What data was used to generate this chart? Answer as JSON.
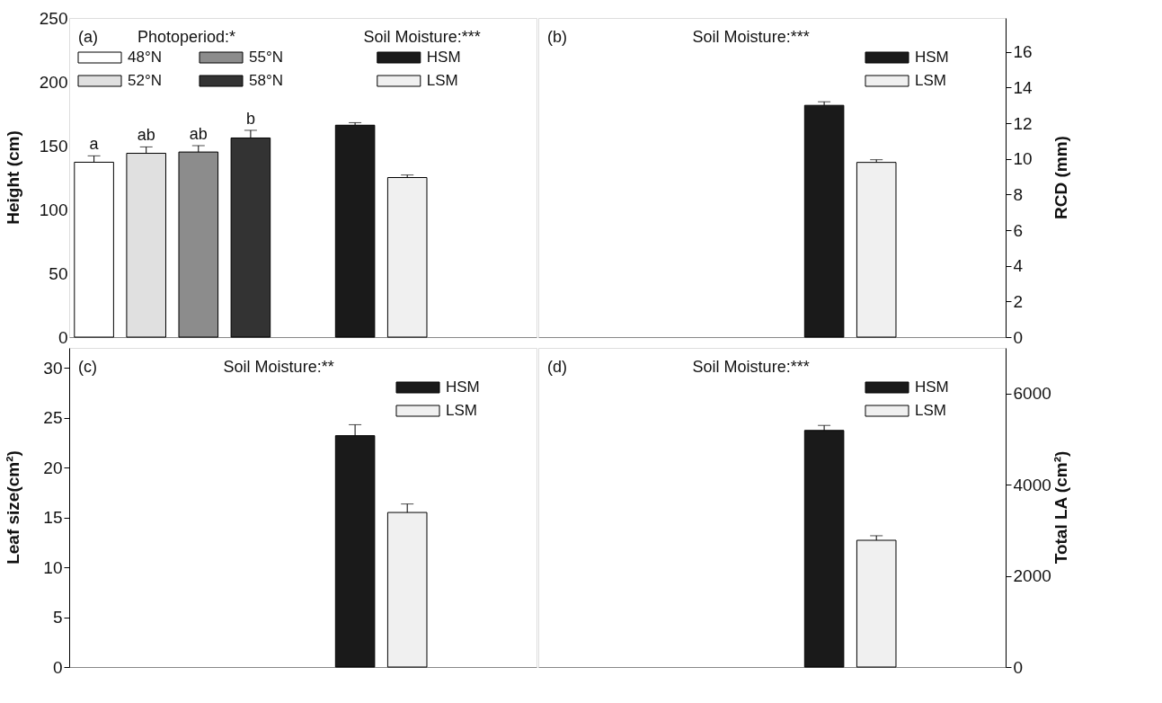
{
  "chart_data": [
    {
      "type": "bar",
      "categories": [
        null,
        null,
        null,
        null,
        null,
        null,
        null,
        null,
        null
      ],
      "ylabel": "Height (cm)",
      "ylim": [
        0,
        250
      ],
      "yticks": [
        0,
        50,
        100,
        150,
        200,
        250
      ],
      "tick_labels": "y",
      "legend": "top",
      "annotations": [
        "(a)",
        "Photoperiod:*",
        "Soil Moisture:***"
      ],
      "series": [
        {
          "name": "48°N",
          "color": "#ffffff",
          "values": [
            137,
            null,
            null,
            null,
            null,
            null,
            null,
            null,
            null
          ],
          "errors": [
            5,
            null,
            null,
            null,
            null,
            null,
            null,
            null,
            null
          ],
          "value_labels": [
            "a",
            null,
            null,
            null,
            null,
            null,
            null,
            null,
            null
          ]
        },
        {
          "name": "52°N",
          "color": "#e0e0e0",
          "values": [
            null,
            144,
            null,
            null,
            null,
            null,
            null,
            null,
            null
          ],
          "errors": [
            null,
            5,
            null,
            null,
            null,
            null,
            null,
            null,
            null
          ],
          "value_labels": [
            null,
            "ab",
            null,
            null,
            null,
            null,
            null,
            null,
            null
          ]
        },
        {
          "name": "55°N",
          "color": "#8c8c8c",
          "values": [
            null,
            null,
            145,
            null,
            null,
            null,
            null,
            null,
            null
          ],
          "errors": [
            null,
            null,
            5,
            null,
            null,
            null,
            null,
            null,
            null
          ],
          "value_labels": [
            null,
            null,
            "ab",
            null,
            null,
            null,
            null,
            null,
            null
          ]
        },
        {
          "name": "58°N",
          "color": "#333333",
          "values": [
            null,
            null,
            null,
            156,
            null,
            null,
            null,
            null,
            null
          ],
          "errors": [
            null,
            null,
            null,
            6,
            null,
            null,
            null,
            null,
            null
          ],
          "value_labels": [
            null,
            null,
            null,
            "b",
            null,
            null,
            null,
            null,
            null
          ]
        },
        {
          "name": "HSM",
          "color": "#1a1a1a",
          "values": [
            null,
            null,
            null,
            null,
            null,
            166,
            null,
            null,
            null
          ],
          "errors": [
            null,
            null,
            null,
            null,
            null,
            2,
            null,
            null,
            null
          ]
        },
        {
          "name": "LSM",
          "color": "#f0f0f0",
          "values": [
            null,
            null,
            null,
            null,
            null,
            null,
            125,
            null,
            null
          ],
          "errors": [
            null,
            null,
            null,
            null,
            null,
            null,
            2,
            null,
            null
          ]
        }
      ]
    },
    {
      "type": "bar",
      "categories": [
        null,
        null,
        null,
        null,
        null,
        null,
        null,
        null,
        null
      ],
      "y2label": "RCD (mm)",
      "y2lim": [
        0,
        17.9
      ],
      "y2ticks": [
        0,
        2,
        4,
        6,
        8,
        10,
        12,
        14,
        16
      ],
      "tick_labels": "y2",
      "legend": "top right",
      "annotations": [
        "(b)",
        "Soil Moisture:***"
      ],
      "series": [
        {
          "name": "HSM",
          "color": "#1a1a1a",
          "axis": "y2",
          "values": [
            null,
            null,
            null,
            null,
            null,
            13.0,
            null,
            null,
            null
          ],
          "errors": [
            null,
            null,
            null,
            null,
            null,
            0.2,
            null,
            null,
            null
          ]
        },
        {
          "name": "LSM",
          "color": "#f0f0f0",
          "axis": "y2",
          "values": [
            null,
            null,
            null,
            null,
            null,
            null,
            9.8,
            null,
            null
          ],
          "errors": [
            null,
            null,
            null,
            null,
            null,
            null,
            0.15,
            null,
            null
          ]
        }
      ]
    },
    {
      "type": "bar",
      "categories": [
        null,
        null,
        null,
        null,
        null,
        null,
        null,
        null,
        null
      ],
      "ylabel": "Leaf size(cm²)",
      "ylim": [
        0,
        32
      ],
      "yticks": [
        0,
        5,
        10,
        15,
        20,
        25,
        30
      ],
      "tick_labels": "y",
      "legend": "top right",
      "annotations": [
        "(c)",
        "Soil Moisture:**"
      ],
      "series": [
        {
          "name": "HSM",
          "color": "#1a1a1a",
          "values": [
            null,
            null,
            null,
            null,
            null,
            23.2,
            null,
            null,
            null
          ],
          "errors": [
            null,
            null,
            null,
            null,
            null,
            1.1,
            null,
            null,
            null
          ]
        },
        {
          "name": "LSM",
          "color": "#f0f0f0",
          "values": [
            null,
            null,
            null,
            null,
            null,
            null,
            15.5,
            null,
            null
          ],
          "errors": [
            null,
            null,
            null,
            null,
            null,
            null,
            0.85,
            null,
            null
          ]
        }
      ]
    },
    {
      "type": "bar",
      "categories": [
        null,
        null,
        null,
        null,
        null,
        null,
        null,
        null,
        null
      ],
      "y2label": "Total LA (cm²)",
      "y2lim": [
        0,
        7000
      ],
      "y2ticks": [
        0,
        2000,
        4000,
        6000
      ],
      "tick_labels": "y2",
      "legend": "top right",
      "annotations": [
        "(d)",
        "Soil Moisture:***"
      ],
      "series": [
        {
          "name": "HSM",
          "color": "#1a1a1a",
          "axis": "y2",
          "values": [
            null,
            null,
            null,
            null,
            null,
            5190,
            null,
            null,
            null
          ],
          "errors": [
            null,
            null,
            null,
            null,
            null,
            110,
            null,
            null,
            null
          ]
        },
        {
          "name": "LSM",
          "color": "#f0f0f0",
          "axis": "y2",
          "values": [
            null,
            null,
            null,
            null,
            null,
            null,
            2780,
            null,
            null
          ],
          "errors": [
            null,
            null,
            null,
            null,
            null,
            null,
            100,
            null,
            null
          ]
        }
      ]
    }
  ]
}
